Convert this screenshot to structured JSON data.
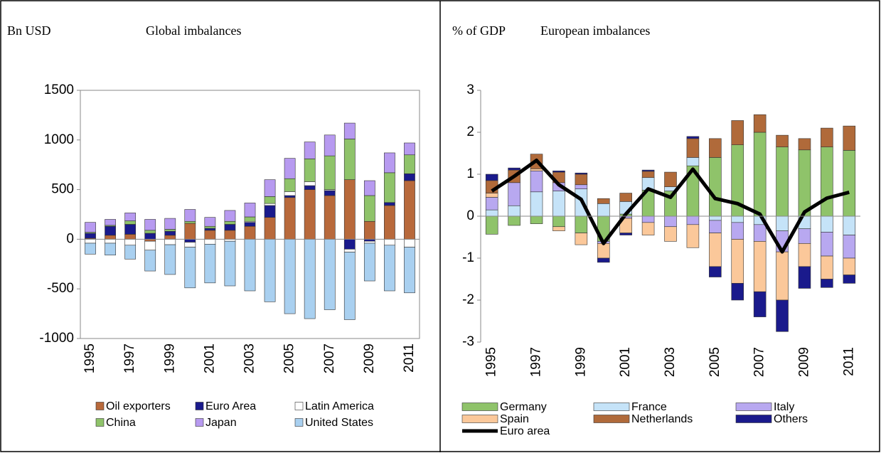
{
  "chart_data": [
    {
      "type": "bar",
      "stacked": true,
      "y_label": "Bn USD",
      "title": "Global imbalances",
      "categories": [
        "1995",
        null,
        "1997",
        null,
        "1999",
        null,
        "2001",
        null,
        "2003",
        null,
        "2005",
        null,
        "2007",
        null,
        "2009",
        null,
        "2011"
      ],
      "ylim": [
        -1000,
        1500
      ],
      "yticks": [
        -1000,
        -500,
        0,
        500,
        1000,
        1500
      ],
      "series": [
        {
          "name": "Oil exporters",
          "color": "#b8693b",
          "values": [
            10,
            40,
            50,
            -20,
            40,
            160,
            90,
            90,
            130,
            220,
            420,
            500,
            440,
            600,
            180,
            340,
            590
          ]
        },
        {
          "name": "Euro Area",
          "color": "#1a1a8c",
          "values": [
            50,
            90,
            100,
            60,
            40,
            -30,
            20,
            60,
            40,
            120,
            20,
            40,
            50,
            -100,
            -20,
            30,
            70
          ]
        },
        {
          "name": "Latin America",
          "color": "#ffffff",
          "values": [
            -40,
            -40,
            -60,
            -90,
            -55,
            -50,
            -50,
            -20,
            10,
            20,
            40,
            40,
            10,
            -30,
            -20,
            -60,
            -80
          ]
        },
        {
          "name": "China",
          "color": "#8fc36a",
          "values": [
            10,
            10,
            35,
            30,
            20,
            20,
            20,
            30,
            45,
            70,
            130,
            230,
            340,
            410,
            260,
            300,
            190
          ]
        },
        {
          "name": "Japan",
          "color": "#b79af0",
          "values": [
            100,
            60,
            80,
            110,
            110,
            120,
            90,
            110,
            140,
            170,
            205,
            170,
            210,
            160,
            150,
            200,
            120
          ]
        },
        {
          "name": "United States",
          "color": "#a9d0f0",
          "values": [
            -110,
            -120,
            -140,
            -210,
            -300,
            -410,
            -390,
            -450,
            -520,
            -630,
            -750,
            -800,
            -710,
            -680,
            -380,
            -460,
            -460
          ]
        }
      ]
    },
    {
      "type": "bar",
      "stacked": true,
      "y_label": "% of GDP",
      "title": "European imbalances",
      "categories": [
        "1995",
        null,
        "1997",
        null,
        "1999",
        null,
        "2001",
        null,
        "2003",
        null,
        "2005",
        null,
        "2007",
        null,
        "2009",
        null,
        "2011"
      ],
      "ylim": [
        -3,
        3
      ],
      "yticks": [
        -3,
        -2,
        -1,
        0,
        1,
        2,
        3
      ],
      "series": [
        {
          "name": "Germany",
          "color": "#8fc36a",
          "values": [
            -0.43,
            -0.22,
            -0.18,
            -0.25,
            -0.4,
            -0.6,
            0.05,
            0.62,
            0.6,
            1.2,
            1.4,
            1.7,
            2.0,
            1.65,
            1.58,
            1.65,
            1.57
          ]
        },
        {
          "name": "France",
          "color": "#c5e3f8",
          "values": [
            0.15,
            0.25,
            0.58,
            0.6,
            0.65,
            0.3,
            0.3,
            0.3,
            0.1,
            0.2,
            -0.1,
            -0.15,
            -0.2,
            -0.35,
            -0.3,
            -0.38,
            -0.45
          ]
        },
        {
          "name": "Italy",
          "color": "#b8a8f0",
          "values": [
            0.3,
            0.55,
            0.5,
            0.2,
            0.1,
            -0.05,
            -0.05,
            -0.15,
            -0.25,
            -0.2,
            -0.3,
            -0.4,
            -0.4,
            -0.5,
            -0.35,
            -0.57,
            -0.55
          ]
        },
        {
          "name": "Spain",
          "color": "#fbc89a",
          "values": [
            0.1,
            0,
            0.05,
            -0.1,
            -0.28,
            -0.35,
            -0.35,
            -0.3,
            -0.35,
            -0.55,
            -0.8,
            -1.05,
            -1.2,
            -1.15,
            -0.55,
            -0.55,
            -0.4
          ]
        },
        {
          "name": "Netherlands",
          "color": "#b06a3a",
          "values": [
            0.3,
            0.3,
            0.35,
            0.25,
            0.25,
            0.12,
            0.2,
            0.15,
            0.35,
            0.45,
            0.45,
            0.58,
            0.42,
            0.28,
            0.27,
            0.45,
            0.58
          ]
        },
        {
          "name": "Others",
          "color": "#1a1a8c",
          "values": [
            0.15,
            0.05,
            0,
            0.03,
            0.03,
            -0.1,
            -0.05,
            0.03,
            0,
            0.05,
            -0.25,
            -0.4,
            -0.6,
            -0.75,
            -0.52,
            -0.2,
            -0.2
          ]
        },
        {
          "name": "Euro area",
          "type": "line",
          "color": "#000000",
          "values": [
            0.6,
            0.95,
            1.33,
            0.75,
            0.4,
            -0.65,
            0.05,
            0.65,
            0.45,
            1.12,
            0.42,
            0.3,
            0.05,
            -0.85,
            0.1,
            0.43,
            0.57
          ]
        }
      ]
    }
  ]
}
